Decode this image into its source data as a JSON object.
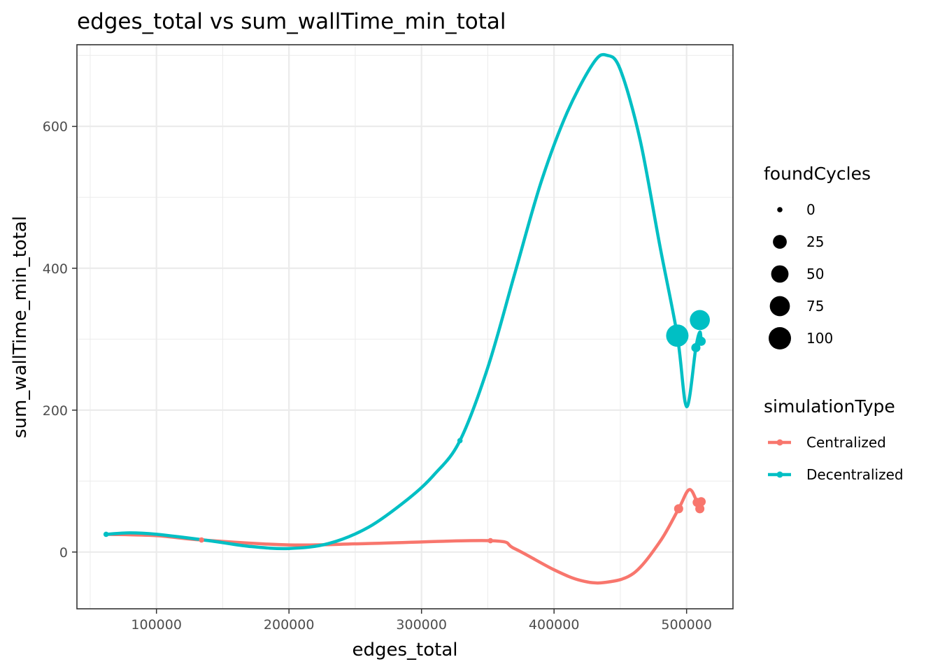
{
  "chart_data": {
    "type": "scatter",
    "title": "edges_total  vs  sum_wallTime_min_total",
    "xlabel": "edges_total",
    "ylabel": "sum_wallTime_min_total",
    "xlim": [
      40000,
      535000
    ],
    "ylim": [
      -80,
      715
    ],
    "x_ticks": [
      100000,
      200000,
      300000,
      400000,
      500000
    ],
    "y_ticks": [
      0,
      200,
      400,
      600
    ],
    "grid": true,
    "legend_position": "right",
    "size_legend": {
      "title": "foundCycles",
      "values": [
        0,
        25,
        50,
        75,
        100
      ]
    },
    "color_legend": {
      "title": "simulationType",
      "entries": [
        {
          "label": "Centralized",
          "color": "#F8766D"
        },
        {
          "label": "Decentralized",
          "color": "#00BFC4"
        }
      ]
    },
    "series": [
      {
        "name": "Centralized",
        "color": "#F8766D",
        "points": [
          {
            "x": 134000,
            "y": 17,
            "size": 0
          },
          {
            "x": 352000,
            "y": 16,
            "size": 0
          },
          {
            "x": 494000,
            "y": 61,
            "size": 5
          },
          {
            "x": 508000,
            "y": 70,
            "size": 5
          },
          {
            "x": 510000,
            "y": 61,
            "size": 5
          },
          {
            "x": 511000,
            "y": 71,
            "size": 5
          }
        ],
        "smooth": [
          [
            62000,
            25
          ],
          [
            100000,
            23
          ],
          [
            134000,
            17
          ],
          [
            200000,
            10
          ],
          [
            260000,
            12
          ],
          [
            352000,
            16
          ],
          [
            370000,
            5
          ],
          [
            400000,
            -25
          ],
          [
            420000,
            -40
          ],
          [
            438000,
            -43
          ],
          [
            460000,
            -30
          ],
          [
            480000,
            15
          ],
          [
            494000,
            61
          ],
          [
            502000,
            88
          ],
          [
            508000,
            70
          ],
          [
            510000,
            61
          ],
          [
            511000,
            71
          ]
        ]
      },
      {
        "name": "Decentralized",
        "color": "#00BFC4",
        "points": [
          {
            "x": 62000,
            "y": 25,
            "size": 0
          },
          {
            "x": 329000,
            "y": 157,
            "size": 0
          },
          {
            "x": 493000,
            "y": 305,
            "size": 100
          },
          {
            "x": 507000,
            "y": 288,
            "size": 5
          },
          {
            "x": 510000,
            "y": 327,
            "size": 75
          },
          {
            "x": 511000,
            "y": 297,
            "size": 5
          }
        ],
        "smooth": [
          [
            62000,
            25
          ],
          [
            80000,
            27
          ],
          [
            100000,
            25
          ],
          [
            140000,
            16
          ],
          [
            170000,
            8
          ],
          [
            200000,
            5
          ],
          [
            230000,
            12
          ],
          [
            260000,
            35
          ],
          [
            290000,
            75
          ],
          [
            310000,
            110
          ],
          [
            329000,
            157
          ],
          [
            350000,
            260
          ],
          [
            370000,
            390
          ],
          [
            390000,
            520
          ],
          [
            410000,
            620
          ],
          [
            430000,
            690
          ],
          [
            440000,
            700
          ],
          [
            450000,
            680
          ],
          [
            465000,
            580
          ],
          [
            480000,
            430
          ],
          [
            493000,
            305
          ],
          [
            500000,
            205
          ],
          [
            507000,
            288
          ],
          [
            510000,
            310
          ],
          [
            511000,
            297
          ]
        ]
      }
    ]
  }
}
